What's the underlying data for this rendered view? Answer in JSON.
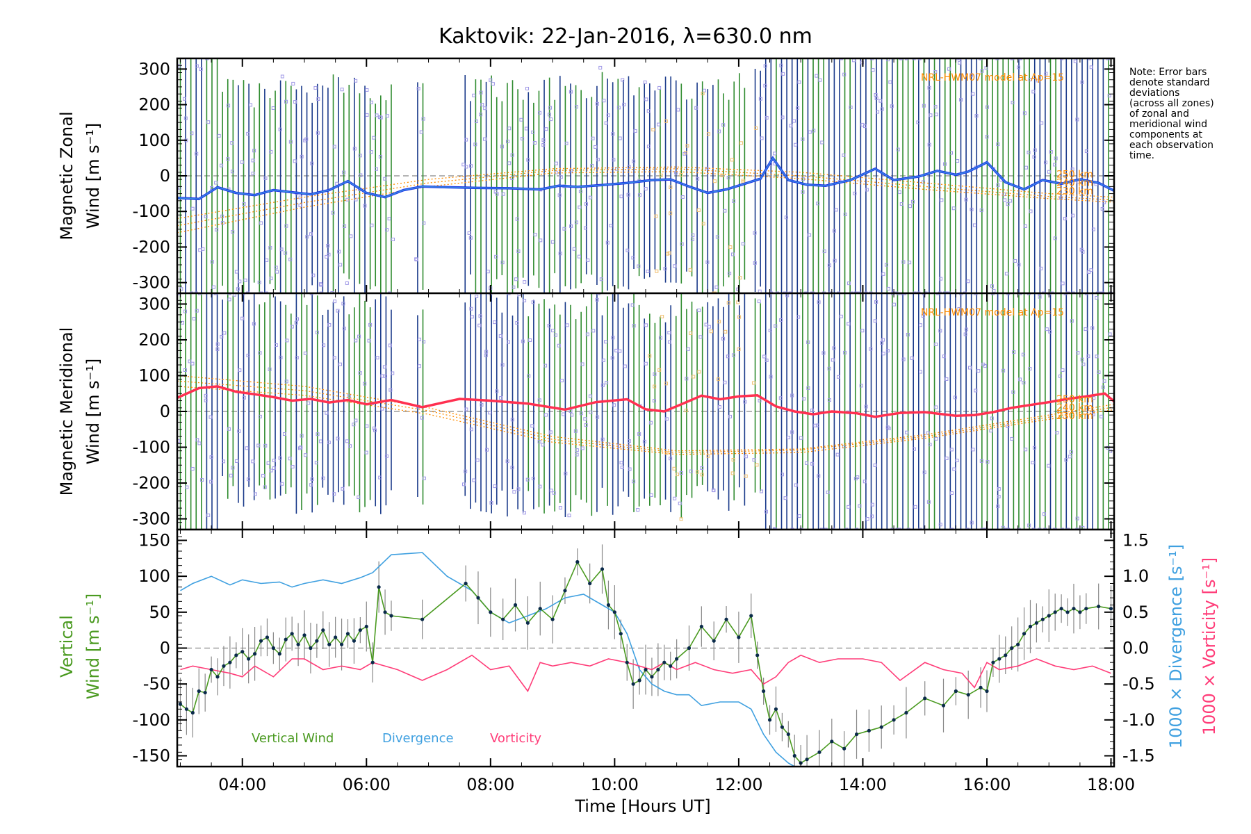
{
  "title": "Kaktovik: 22-Jan-2016, λ=630.0 nm",
  "note_lines": [
    "Note: Error bars",
    "denote standard",
    "deviations",
    "(across all zones)",
    "of zonal and",
    "meridional wind",
    "components at",
    "each observation",
    "time."
  ],
  "colors": {
    "zonal": "#1f35e8",
    "zonal_light": "#3fa0e0",
    "meridional": "#ff3050",
    "model": "#ff8c00",
    "vertical": "#4a9a20",
    "divergence": "#3fa0e0",
    "vorticity": "#ff3c78",
    "errbar_dark": "#1a3a8a",
    "errbar_green": "#2e8b2e",
    "scatter": "#9f98e6",
    "scatter_warm": "#f0c070"
  },
  "x_axis": {
    "label": "Time [Hours UT]",
    "range": [
      2.95,
      18.05
    ],
    "ticks": [
      4,
      6,
      8,
      10,
      12,
      14,
      16,
      18
    ],
    "tick_labels": [
      "04:00",
      "06:00",
      "08:00",
      "10:00",
      "12:00",
      "14:00",
      "16:00",
      "18:00"
    ]
  },
  "panels": [
    {
      "id": "zonal",
      "ylabel_line1": "Magnetic Zonal",
      "ylabel_line2": "Wind [m s⁻¹]",
      "model_label": "NRL-HWM07 model at Ap=15",
      "model_level_labels": [
        "250 km",
        "240 km",
        "230 km"
      ],
      "ylim": [
        -330,
        330
      ],
      "yticks": [
        300,
        200,
        100,
        0,
        -100,
        -200,
        -300
      ]
    },
    {
      "id": "meridional",
      "ylabel_line1": "Magnetic Meridional",
      "ylabel_line2": "Wind [m s⁻¹]",
      "model_label": "NRL-HWM07 model at Ap=15",
      "model_level_labels": [
        "250 km",
        "240 km",
        "230 km"
      ],
      "ylim": [
        -330,
        330
      ],
      "yticks": [
        300,
        200,
        100,
        0,
        -100,
        -200,
        -300
      ]
    },
    {
      "id": "vertical",
      "ylabel_line1": "Vertical",
      "ylabel_line2": "Wind [m s⁻¹]",
      "ylim": [
        -165,
        165
      ],
      "yticks": [
        150,
        100,
        50,
        0,
        -50,
        -100,
        -150
      ],
      "right_ylim": [
        -1.65,
        1.65
      ],
      "right_yticks": [
        1.5,
        1.0,
        0.5,
        0.0,
        -0.5,
        -1.0,
        -1.5
      ],
      "right_tick_labels": [
        "1.5",
        "1.0",
        "0.5",
        "0.0",
        "-0.5",
        "-1.0",
        "-1.5"
      ],
      "right_label_div": "1000 × Divergence [s⁻¹]",
      "right_label_vor": "1000 × Vorticity [s⁻¹]",
      "legend": [
        "Vertical Wind",
        "Divergence",
        "Vorticity"
      ]
    }
  ],
  "chart_data": {
    "type": "line",
    "x_unit": "hours UT",
    "zonal_wind": {
      "x": [
        2.95,
        3.3,
        3.6,
        3.9,
        4.2,
        4.5,
        4.8,
        5.1,
        5.4,
        5.7,
        6.0,
        6.3,
        6.6,
        6.9,
        7.3,
        7.8,
        8.3,
        8.8,
        9.1,
        9.4,
        9.8,
        10.2,
        10.6,
        10.9,
        11.2,
        11.5,
        11.8,
        12.1,
        12.35,
        12.55,
        12.8,
        13.1,
        13.4,
        13.8,
        14.2,
        14.5,
        14.9,
        15.2,
        15.5,
        15.7,
        16.0,
        16.3,
        16.6,
        16.9,
        17.2,
        17.5,
        17.8,
        18.05
      ],
      "y": [
        -62,
        -65,
        -32,
        -48,
        -54,
        -40,
        -46,
        -52,
        -40,
        -15,
        -48,
        -60,
        -40,
        -30,
        -32,
        -34,
        -35,
        -38,
        -28,
        -31,
        -26,
        -20,
        -12,
        -10,
        -30,
        -48,
        -38,
        -22,
        -8,
        50,
        -12,
        -25,
        -28,
        -12,
        20,
        -12,
        -2,
        14,
        3,
        12,
        38,
        -18,
        -38,
        -12,
        -22,
        -10,
        -20,
        -42
      ]
    },
    "meridional_wind": {
      "x": [
        2.95,
        3.3,
        3.6,
        3.9,
        4.2,
        4.5,
        4.8,
        5.1,
        5.4,
        5.7,
        6.0,
        6.4,
        6.9,
        7.5,
        8.0,
        8.6,
        9.2,
        9.7,
        10.2,
        10.5,
        10.8,
        11.1,
        11.4,
        11.7,
        12.0,
        12.3,
        12.6,
        12.9,
        13.2,
        13.5,
        13.9,
        14.2,
        14.6,
        15.0,
        15.5,
        15.8,
        16.1,
        16.4,
        16.7,
        17.0,
        17.3,
        17.6,
        17.9,
        18.05
      ],
      "y": [
        38,
        65,
        70,
        55,
        48,
        40,
        30,
        35,
        25,
        32,
        20,
        32,
        12,
        35,
        30,
        22,
        5,
        26,
        34,
        6,
        0,
        22,
        44,
        34,
        42,
        45,
        14,
        0,
        -8,
        0,
        -5,
        -15,
        -4,
        -2,
        -12,
        -10,
        -2,
        10,
        18,
        26,
        35,
        42,
        50,
        28
      ]
    },
    "model_zonal_250km": {
      "x": [
        2.95,
        5,
        7,
        9,
        11,
        13,
        15,
        17,
        18.05
      ],
      "y": [
        -120,
        -60,
        -10,
        20,
        25,
        10,
        -20,
        -50,
        -60
      ]
    },
    "model_zonal_240km": {
      "x": [
        2.95,
        5,
        7,
        9,
        11,
        13,
        15,
        17,
        18.05
      ],
      "y": [
        -140,
        -75,
        -20,
        15,
        20,
        0,
        -30,
        -58,
        -68
      ]
    },
    "model_zonal_230km": {
      "x": [
        2.95,
        5,
        7,
        9,
        11,
        13,
        15,
        17,
        18.05
      ],
      "y": [
        -160,
        -88,
        -30,
        8,
        12,
        -8,
        -38,
        -64,
        -74
      ]
    },
    "model_meridional_250km": {
      "x": [
        2.95,
        5,
        7,
        9,
        11,
        13,
        15,
        17,
        18.05
      ],
      "y": [
        100,
        70,
        10,
        -70,
        -110,
        -105,
        -65,
        -10,
        20
      ]
    },
    "model_meridional_240km": {
      "x": [
        2.95,
        5,
        7,
        9,
        11,
        13,
        15,
        17,
        18.05
      ],
      "y": [
        85,
        58,
        2,
        -78,
        -115,
        -108,
        -70,
        -16,
        12
      ]
    },
    "model_meridional_230km": {
      "x": [
        2.95,
        5,
        7,
        9,
        11,
        13,
        15,
        17,
        18.05
      ],
      "y": [
        70,
        45,
        -8,
        -86,
        -120,
        -115,
        -75,
        -22,
        5
      ]
    },
    "vertical_wind": {
      "x": [
        3.0,
        3.1,
        3.2,
        3.3,
        3.4,
        3.5,
        3.6,
        3.7,
        3.8,
        3.9,
        4.0,
        4.1,
        4.2,
        4.3,
        4.4,
        4.5,
        4.6,
        4.7,
        4.8,
        4.9,
        5.0,
        5.1,
        5.2,
        5.3,
        5.4,
        5.5,
        5.6,
        5.7,
        5.8,
        5.9,
        6.0,
        6.1,
        6.2,
        6.3,
        6.4,
        6.9,
        7.6,
        7.8,
        8.0,
        8.2,
        8.4,
        8.6,
        8.8,
        9.0,
        9.2,
        9.4,
        9.6,
        9.8,
        9.9,
        10.0,
        10.1,
        10.2,
        10.3,
        10.4,
        10.5,
        10.6,
        10.7,
        10.8,
        10.9,
        11.0,
        11.2,
        11.4,
        11.6,
        11.8,
        12.0,
        12.2,
        12.3,
        12.4,
        12.5,
        12.6,
        12.7,
        12.8,
        12.9,
        13.0,
        13.1,
        13.3,
        13.5,
        13.7,
        13.9,
        14.1,
        14.3,
        14.5,
        14.7,
        15.0,
        15.3,
        15.5,
        15.7,
        15.9,
        16.0,
        16.1,
        16.2,
        16.3,
        16.4,
        16.5,
        16.6,
        16.7,
        16.8,
        16.9,
        17.0,
        17.1,
        17.2,
        17.3,
        17.4,
        17.5,
        17.6,
        17.8,
        18.0
      ],
      "y": [
        -78,
        -85,
        -90,
        -60,
        -62,
        -30,
        -40,
        -25,
        -20,
        -10,
        -5,
        -15,
        -8,
        10,
        15,
        0,
        -8,
        12,
        20,
        5,
        18,
        0,
        10,
        25,
        5,
        15,
        5,
        20,
        10,
        25,
        30,
        -20,
        85,
        50,
        45,
        40,
        90,
        70,
        50,
        40,
        60,
        35,
        55,
        40,
        80,
        120,
        90,
        110,
        60,
        50,
        20,
        -20,
        -50,
        -45,
        -30,
        -40,
        -30,
        -20,
        -25,
        -15,
        0,
        30,
        10,
        40,
        15,
        45,
        -10,
        -60,
        -100,
        -85,
        -110,
        -120,
        -150,
        -160,
        -155,
        -145,
        -130,
        -140,
        -120,
        -115,
        -110,
        -100,
        -90,
        -70,
        -80,
        -60,
        -65,
        -55,
        -60,
        -20,
        -15,
        -10,
        0,
        5,
        20,
        30,
        35,
        40,
        45,
        50,
        55,
        50,
        55,
        50,
        55,
        58,
        55
      ]
    },
    "divergence": {
      "x": [
        3.0,
        3.2,
        3.5,
        3.8,
        4.0,
        4.3,
        4.6,
        4.8,
        5.0,
        5.3,
        5.6,
        5.9,
        6.1,
        6.4,
        6.9,
        7.3,
        7.7,
        8.0,
        8.3,
        8.6,
        8.9,
        9.2,
        9.5,
        9.8,
        10.0,
        10.2,
        10.4,
        10.6,
        10.8,
        11.0,
        11.2,
        11.4,
        11.7,
        12.0,
        12.2,
        12.4,
        12.6,
        12.8,
        12.9
      ],
      "y": [
        0.8,
        0.9,
        1.0,
        0.88,
        0.95,
        0.9,
        0.92,
        0.85,
        0.9,
        0.95,
        0.9,
        0.98,
        1.05,
        1.3,
        1.33,
        1.0,
        0.8,
        0.5,
        0.35,
        0.45,
        0.55,
        0.7,
        0.75,
        0.6,
        0.5,
        0.2,
        -0.3,
        -0.5,
        -0.6,
        -0.65,
        -0.65,
        -0.8,
        -0.75,
        -0.75,
        -0.85,
        -1.2,
        -1.45,
        -1.6,
        -1.65
      ]
    },
    "vorticity": {
      "x": [
        3.0,
        3.2,
        3.5,
        3.8,
        4.0,
        4.2,
        4.5,
        4.8,
        5.0,
        5.3,
        5.6,
        5.9,
        6.1,
        6.5,
        6.9,
        7.3,
        7.7,
        8.0,
        8.3,
        8.6,
        8.8,
        9.0,
        9.3,
        9.6,
        9.9,
        10.2,
        10.4,
        10.6,
        10.8,
        11.0,
        11.3,
        11.6,
        11.9,
        12.2,
        12.4,
        12.6,
        12.8,
        13.0,
        13.3,
        13.6,
        14.0,
        14.3,
        14.6,
        15.0,
        15.3,
        15.6,
        15.8,
        16.0,
        16.2,
        16.5,
        16.8,
        17.1,
        17.4,
        17.7,
        18.0
      ],
      "y": [
        -0.3,
        -0.25,
        -0.3,
        -0.35,
        -0.4,
        -0.25,
        -0.4,
        -0.15,
        -0.15,
        -0.3,
        -0.25,
        -0.3,
        -0.2,
        -0.3,
        -0.45,
        -0.3,
        -0.1,
        -0.3,
        -0.25,
        -0.6,
        -0.2,
        -0.25,
        -0.2,
        -0.25,
        -0.15,
        -0.2,
        -0.25,
        -0.3,
        -0.2,
        -0.3,
        -0.2,
        -0.3,
        -0.35,
        -0.3,
        -0.5,
        -0.4,
        -0.2,
        -0.1,
        -0.2,
        -0.15,
        -0.15,
        -0.2,
        -0.45,
        -0.2,
        -0.3,
        -0.35,
        -0.55,
        -0.2,
        -0.3,
        -0.25,
        -0.15,
        -0.25,
        -0.3,
        -0.25,
        -0.35
      ]
    }
  }
}
